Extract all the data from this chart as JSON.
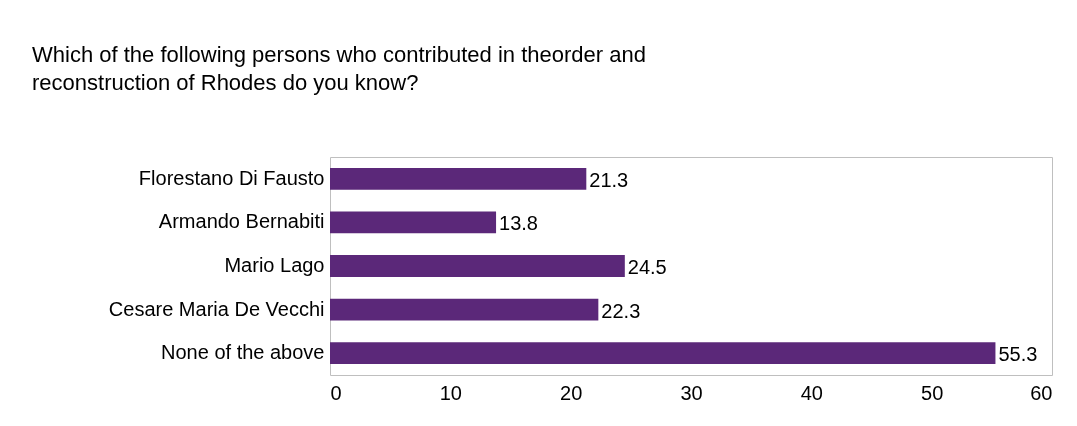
{
  "chart_data": {
    "type": "bar",
    "orientation": "horizontal",
    "title": "Which of the following persons who contributed in theorder and\nreconstruction of Rhodes do you know?",
    "categories": [
      "Florestano Di Fausto",
      "Armando Bernabiti",
      "Mario Lago",
      "Cesare Maria De Vecchi",
      "None of the above"
    ],
    "values": [
      21.3,
      13.8,
      24.5,
      22.3,
      55.3
    ],
    "color": "#5b2879",
    "xlim": [
      0,
      60
    ],
    "xticks": [
      0,
      10,
      20,
      30,
      40,
      50,
      60
    ],
    "grid": false,
    "data_labels": true
  }
}
